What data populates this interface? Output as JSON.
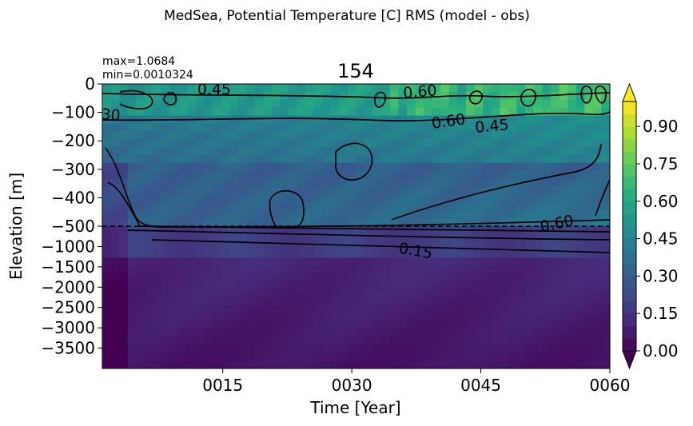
{
  "chart_data": {
    "type": "heatmap",
    "suptitle": "MedSea, Potential Temperature [C] RMS (model - obs)",
    "title": "154",
    "stats": {
      "max_label": "max=1.0684",
      "min_label": "min=0.0010324"
    },
    "xlabel": "Time [Year]",
    "ylabel": "Elevation [m]",
    "x_ticks": [
      "0015",
      "0030",
      "0045",
      "0060"
    ],
    "x_range_years": [
      1,
      60
    ],
    "y_ticks_upper": [
      "0",
      "−100",
      "−200",
      "−300",
      "−400",
      "−500"
    ],
    "y_ticks_lower": [
      "−1000",
      "−1500",
      "−2000",
      "−2500",
      "−3000",
      "−3500"
    ],
    "y_range_m": [
      -4000,
      0
    ],
    "y_axis_break_m": -500,
    "colorbar": {
      "ticks": [
        "0.00",
        "0.15",
        "0.30",
        "0.45",
        "0.60",
        "0.75",
        "0.90"
      ],
      "range": [
        0,
        1.0
      ],
      "extend": "both",
      "colormap": "viridis"
    },
    "contour_labels": [
      "0.45",
      "0.60",
      "0.60",
      "0.45",
      "0.60",
      "0.15",
      "30"
    ],
    "grid": false
  }
}
